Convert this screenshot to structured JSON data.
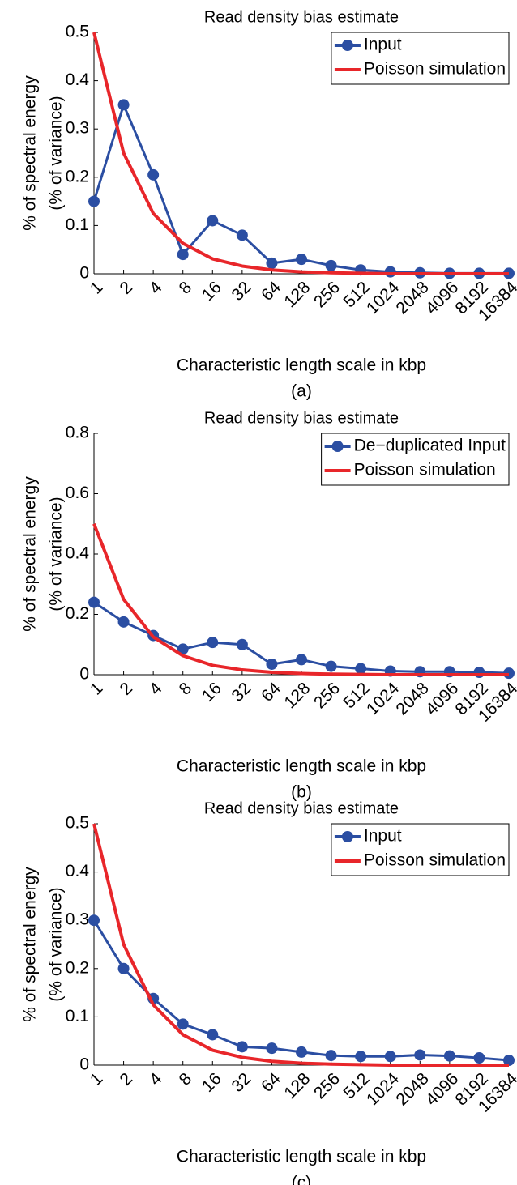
{
  "chart_data": [
    {
      "type": "line",
      "title": "Read density bias estimate",
      "xlabel": "Characteristic length scale in kbp",
      "ylabel": [
        "% of spectral energy",
        "(% of variance)"
      ],
      "caption": "(a)",
      "categories": [
        "1",
        "2",
        "4",
        "8",
        "16",
        "32",
        "64",
        "128",
        "256",
        "512",
        "1024",
        "2048",
        "4096",
        "8192",
        "16384"
      ],
      "series": [
        {
          "name": "Input",
          "color": "#2b4ea2",
          "marker": true,
          "values": [
            0.15,
            0.35,
            0.205,
            0.04,
            0.11,
            0.08,
            0.022,
            0.03,
            0.017,
            0.008,
            0.004,
            0.002,
            0.001,
            0.001,
            0.001
          ]
        },
        {
          "name": "Poisson simulation",
          "color": "#e8262a",
          "marker": false,
          "values": [
            0.5,
            0.25,
            0.125,
            0.063,
            0.031,
            0.016,
            0.008,
            0.004,
            0.002,
            0.001,
            0,
            0,
            0,
            0,
            0
          ]
        }
      ],
      "ylim": [
        0,
        0.5
      ],
      "yticks": [
        0,
        0.1,
        0.2,
        0.3,
        0.4,
        0.5
      ],
      "legend": "upper right"
    },
    {
      "type": "line",
      "title": "Read density bias estimate",
      "xlabel": "Characteristic length scale in kbp",
      "ylabel": [
        "% of spectral energy",
        "(% of variance)"
      ],
      "caption": "(b)",
      "categories": [
        "1",
        "2",
        "4",
        "8",
        "16",
        "32",
        "64",
        "128",
        "256",
        "512",
        "1024",
        "2048",
        "4096",
        "8192",
        "16384"
      ],
      "series": [
        {
          "name": "De−duplicated Input",
          "color": "#2b4ea2",
          "marker": true,
          "values": [
            0.24,
            0.175,
            0.13,
            0.085,
            0.107,
            0.1,
            0.035,
            0.05,
            0.028,
            0.02,
            0.012,
            0.01,
            0.01,
            0.008,
            0.005
          ]
        },
        {
          "name": "Poisson simulation",
          "color": "#e8262a",
          "marker": false,
          "values": [
            0.5,
            0.25,
            0.125,
            0.063,
            0.031,
            0.016,
            0.008,
            0.004,
            0.002,
            0.001,
            0,
            0,
            0,
            0,
            0
          ]
        }
      ],
      "ylim": [
        0,
        0.8
      ],
      "yticks": [
        0,
        0.2,
        0.4,
        0.6,
        0.8
      ],
      "legend": "upper right"
    },
    {
      "type": "line",
      "title": "Read density bias estimate",
      "xlabel": "Characteristic length scale in kbp",
      "ylabel": [
        "% of spectral energy",
        "(% of variance)"
      ],
      "caption": "(c)",
      "categories": [
        "1",
        "2",
        "4",
        "8",
        "16",
        "32",
        "64",
        "128",
        "256",
        "512",
        "1024",
        "2048",
        "4096",
        "8192",
        "16384"
      ],
      "series": [
        {
          "name": "Input",
          "color": "#2b4ea2",
          "marker": true,
          "values": [
            0.3,
            0.2,
            0.138,
            0.085,
            0.063,
            0.038,
            0.035,
            0.027,
            0.02,
            0.018,
            0.018,
            0.021,
            0.019,
            0.015,
            0.01
          ]
        },
        {
          "name": "Poisson simulation",
          "color": "#e8262a",
          "marker": false,
          "values": [
            0.5,
            0.25,
            0.125,
            0.063,
            0.031,
            0.016,
            0.008,
            0.004,
            0.002,
            0.001,
            0,
            0,
            0,
            0,
            0
          ]
        }
      ],
      "ylim": [
        0,
        0.5
      ],
      "yticks": [
        0,
        0.1,
        0.2,
        0.3,
        0.4,
        0.5
      ],
      "legend": "upper right"
    }
  ]
}
